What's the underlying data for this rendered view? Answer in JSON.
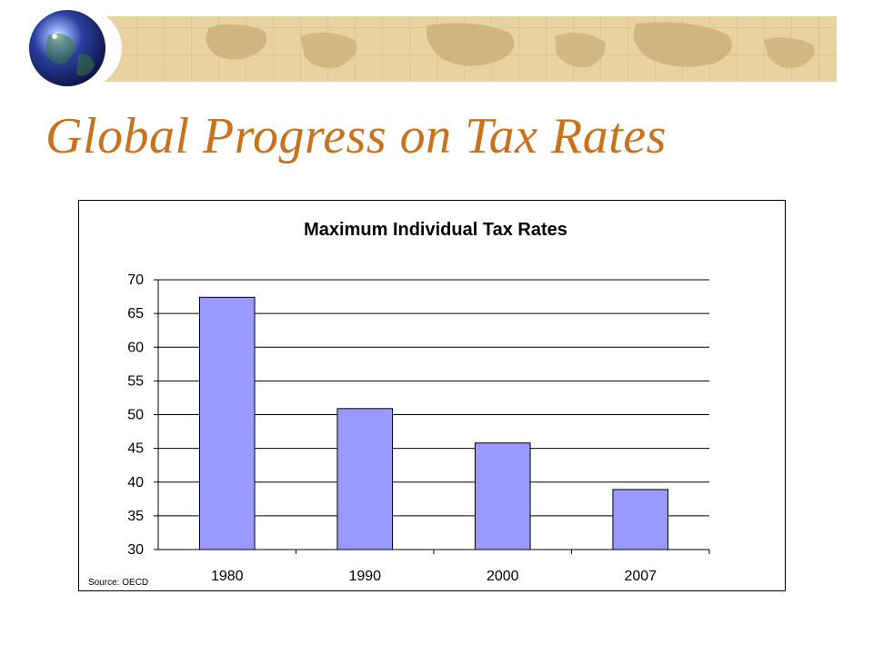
{
  "slide": {
    "title": "Global Progress on Tax Rates"
  },
  "colors": {
    "title": "#c8721c",
    "banner_map": "#e8d3a0",
    "bar_fill": "#9999ff",
    "bar_stroke": "#000000",
    "grid": "#000000"
  },
  "icons": [
    "globe-icon",
    "world-map-banner"
  ],
  "chart_data": {
    "type": "bar",
    "title": "Maximum Individual Tax Rates",
    "categories": [
      "1980",
      "1990",
      "2000",
      "2007"
    ],
    "values": [
      67.4,
      50.9,
      45.8,
      38.9
    ],
    "ylim": [
      30,
      70
    ],
    "yticks": [
      30,
      35,
      40,
      45,
      50,
      55,
      60,
      65,
      70
    ],
    "grid": true,
    "legend": "none",
    "source": "Source: OECD"
  }
}
